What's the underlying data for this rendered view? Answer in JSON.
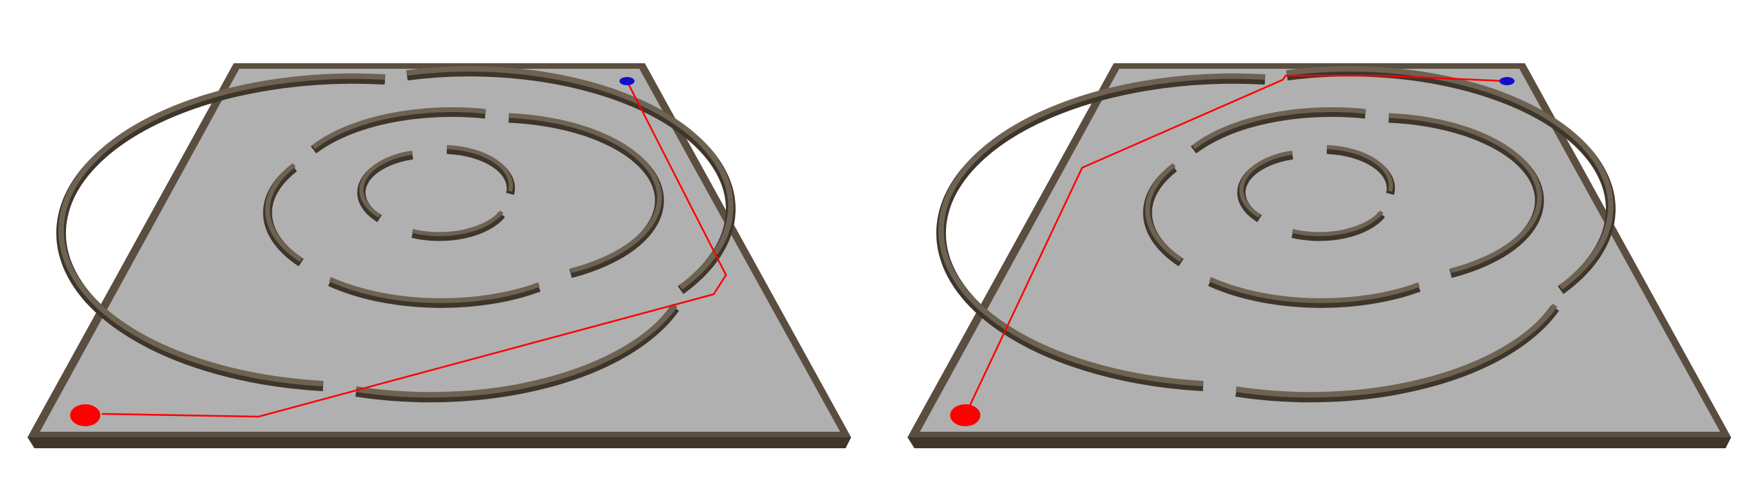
{
  "scene": {
    "background": "#ffffff",
    "floor_color": "#b0b0b0",
    "wall_color": "#5a4e40",
    "wall_top_color": "#6e6252",
    "wall_shadow_color": "#3a3128",
    "path_color": "#ff0000",
    "start_marker_color": "#ff0000",
    "goal_marker_color": "#1010cc"
  },
  "panels": [
    {
      "id": "left-maze",
      "path_label": "path-route-right-side"
    },
    {
      "id": "right-maze",
      "path_label": "path-route-left-side"
    }
  ]
}
